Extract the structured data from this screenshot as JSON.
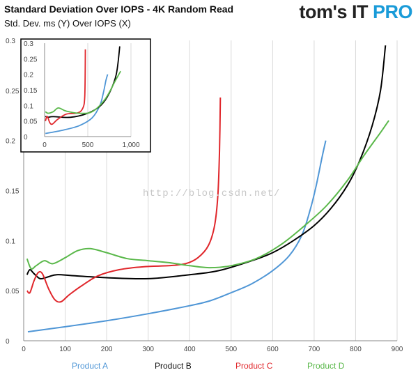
{
  "header": {
    "title": "Standard Deviation Over IOPS - 4K Random Read",
    "subtitle": "Std. Dev. ms (Y) Over IOPS (X)",
    "brand_main": "tom's IT",
    "brand_accent": "PRO"
  },
  "watermark": "http://blog.csdn.net/",
  "chart_data": [
    {
      "type": "line",
      "title": "Standard Deviation Over IOPS - 4K Random Read",
      "subtitle": "Std. Dev. ms (Y) Over IOPS (X)",
      "xlabel": "",
      "ylabel": "",
      "xlim": [
        0,
        900
      ],
      "ylim": [
        0,
        0.3
      ],
      "x_ticks": [
        "0",
        "100",
        "200",
        "300",
        "400",
        "500",
        "600",
        "700",
        "800",
        "900"
      ],
      "y_ticks": [
        "0",
        "0.05",
        "0.1",
        "0.15",
        "0.2",
        "0.25",
        "0.3"
      ],
      "grid": "vertical",
      "legend": "bottom",
      "series": [
        {
          "name": "Product A",
          "color": "#4f96d6",
          "points": [
            [
              10,
              0.009
            ],
            [
              100,
              0.014
            ],
            [
              200,
              0.02
            ],
            [
              300,
              0.027
            ],
            [
              400,
              0.035
            ],
            [
              450,
              0.04
            ],
            [
              500,
              0.048
            ],
            [
              550,
              0.057
            ],
            [
              600,
              0.07
            ],
            [
              640,
              0.085
            ],
            [
              670,
              0.105
            ],
            [
              690,
              0.13
            ],
            [
              705,
              0.155
            ],
            [
              720,
              0.185
            ],
            [
              728,
              0.2
            ]
          ]
        },
        {
          "name": "Product B",
          "color": "#000000",
          "points": [
            [
              8,
              0.066
            ],
            [
              15,
              0.071
            ],
            [
              25,
              0.067
            ],
            [
              40,
              0.062
            ],
            [
              60,
              0.064
            ],
            [
              80,
              0.066
            ],
            [
              120,
              0.065
            ],
            [
              200,
              0.063
            ],
            [
              300,
              0.062
            ],
            [
              400,
              0.066
            ],
            [
              470,
              0.07
            ],
            [
              550,
              0.08
            ],
            [
              600,
              0.088
            ],
            [
              650,
              0.1
            ],
            [
              700,
              0.115
            ],
            [
              740,
              0.132
            ],
            [
              780,
              0.155
            ],
            [
              810,
              0.18
            ],
            [
              840,
              0.215
            ],
            [
              860,
              0.25
            ],
            [
              872,
              0.295
            ]
          ]
        },
        {
          "name": "Product C",
          "color": "#e0262b",
          "points": [
            [
              8,
              0.05
            ],
            [
              15,
              0.048
            ],
            [
              25,
              0.06
            ],
            [
              35,
              0.068
            ],
            [
              45,
              0.067
            ],
            [
              60,
              0.052
            ],
            [
              75,
              0.041
            ],
            [
              90,
              0.039
            ],
            [
              110,
              0.046
            ],
            [
              140,
              0.055
            ],
            [
              180,
              0.065
            ],
            [
              230,
              0.071
            ],
            [
              290,
              0.074
            ],
            [
              350,
              0.075
            ],
            [
              390,
              0.077
            ],
            [
              420,
              0.083
            ],
            [
              445,
              0.095
            ],
            [
              460,
              0.115
            ],
            [
              468,
              0.145
            ],
            [
              472,
              0.19
            ],
            [
              474,
              0.243
            ]
          ]
        },
        {
          "name": "Product D",
          "color": "#5ab84a",
          "points": [
            [
              8,
              0.082
            ],
            [
              18,
              0.072
            ],
            [
              30,
              0.075
            ],
            [
              50,
              0.08
            ],
            [
              70,
              0.077
            ],
            [
              100,
              0.083
            ],
            [
              130,
              0.09
            ],
            [
              160,
              0.092
            ],
            [
              200,
              0.088
            ],
            [
              250,
              0.082
            ],
            [
              300,
              0.08
            ],
            [
              350,
              0.078
            ],
            [
              400,
              0.075
            ],
            [
              450,
              0.073
            ],
            [
              500,
              0.075
            ],
            [
              560,
              0.082
            ],
            [
              620,
              0.096
            ],
            [
              680,
              0.116
            ],
            [
              730,
              0.135
            ],
            [
              780,
              0.16
            ],
            [
              820,
              0.185
            ],
            [
              860,
              0.208
            ],
            [
              880,
              0.22
            ]
          ]
        }
      ]
    },
    {
      "type": "line",
      "title": "",
      "xlim": [
        0,
        1000
      ],
      "ylim": [
        0,
        0.3
      ],
      "x_ticks": [
        "0",
        "500",
        "1,000"
      ],
      "y_ticks": [
        "0",
        "0.05",
        "0.1",
        "0.15",
        "0.2",
        "0.25",
        "0.3"
      ],
      "grid": "vertical",
      "series": [
        {
          "name": "Product A",
          "color": "#4f96d6",
          "points": [
            [
              10,
              0.01
            ],
            [
              200,
              0.02
            ],
            [
              400,
              0.035
            ],
            [
              550,
              0.06
            ],
            [
              640,
              0.1
            ],
            [
              680,
              0.14
            ],
            [
              710,
              0.18
            ],
            [
              730,
              0.2
            ]
          ]
        },
        {
          "name": "Product B",
          "color": "#000000",
          "points": [
            [
              10,
              0.065
            ],
            [
              40,
              0.062
            ],
            [
              100,
              0.064
            ],
            [
              300,
              0.062
            ],
            [
              500,
              0.075
            ],
            [
              650,
              0.1
            ],
            [
              750,
              0.14
            ],
            [
              830,
              0.2
            ],
            [
              870,
              0.29
            ]
          ]
        },
        {
          "name": "Product C",
          "color": "#e0262b",
          "points": [
            [
              10,
              0.05
            ],
            [
              30,
              0.065
            ],
            [
              60,
              0.045
            ],
            [
              90,
              0.04
            ],
            [
              150,
              0.055
            ],
            [
              250,
              0.072
            ],
            [
              380,
              0.076
            ],
            [
              440,
              0.09
            ],
            [
              465,
              0.13
            ],
            [
              472,
              0.28
            ]
          ]
        },
        {
          "name": "Product D",
          "color": "#5ab84a",
          "points": [
            [
              10,
              0.08
            ],
            [
              40,
              0.075
            ],
            [
              100,
              0.08
            ],
            [
              160,
              0.092
            ],
            [
              250,
              0.082
            ],
            [
              400,
              0.075
            ],
            [
              550,
              0.08
            ],
            [
              700,
              0.12
            ],
            [
              820,
              0.18
            ],
            [
              880,
              0.21
            ]
          ]
        }
      ]
    }
  ]
}
